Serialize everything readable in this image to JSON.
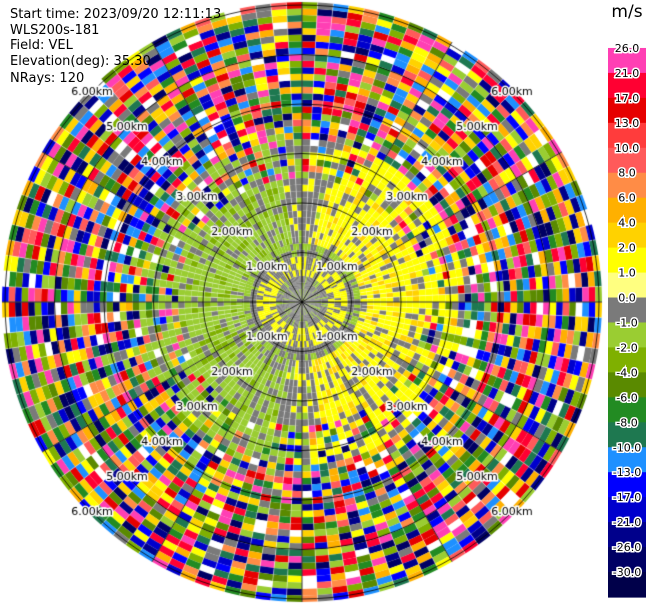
{
  "header": {
    "start_time": "Start time: 2023/09/20 12:11:13",
    "instrument": "WLS200s-181",
    "field": "Field: VEL",
    "elevation": "Elevation(deg): 35.30",
    "nrays": "NRays: 120"
  },
  "chart_data": {
    "type": "heatmap",
    "subtype": "ppi-polar",
    "field": "VEL",
    "units": "m/s",
    "nrays": 120,
    "elevation_deg": 35.3,
    "range_rings_labels": [
      "1.00km",
      "2.00km",
      "3.00km",
      "4.00km",
      "5.00km",
      "6.00km"
    ],
    "colorbar": {
      "label": "m/s",
      "min": -30.0,
      "max": 30.0,
      "ticks": [
        26.0,
        21.0,
        17.0,
        13.0,
        10.0,
        8.0,
        6.0,
        4.0,
        2.0,
        1.0,
        0.0,
        -1.0,
        -2.0,
        -4.0,
        -6.0,
        -8.0,
        -10.0,
        -13.0,
        -17.0,
        -21.0,
        -26.0,
        -30.0
      ],
      "bands": [
        {
          "value": 30.0,
          "color": "#ffffff"
        },
        {
          "value": 26.0,
          "color": "#ff3fb4"
        },
        {
          "value": 21.0,
          "color": "#ff0032"
        },
        {
          "value": 17.0,
          "color": "#e60000"
        },
        {
          "value": 13.0,
          "color": "#ff3c3c"
        },
        {
          "value": 10.0,
          "color": "#ff5a5a"
        },
        {
          "value": 8.0,
          "color": "#ff8c46"
        },
        {
          "value": 6.0,
          "color": "#ffb000"
        },
        {
          "value": 4.0,
          "color": "#ffd200"
        },
        {
          "value": 2.0,
          "color": "#ffff00"
        },
        {
          "value": 1.0,
          "color": "#ffff80"
        },
        {
          "value": 0.0,
          "color": "#7a7a7a"
        },
        {
          "value": -1.0,
          "color": "#9acd32"
        },
        {
          "value": -2.0,
          "color": "#7fb000"
        },
        {
          "value": -4.0,
          "color": "#5a8a00"
        },
        {
          "value": -6.0,
          "color": "#228b22"
        },
        {
          "value": -8.0,
          "color": "#1e7850"
        },
        {
          "value": -10.0,
          "color": "#1e90ff"
        },
        {
          "value": -13.0,
          "color": "#0000ff"
        },
        {
          "value": -17.0,
          "color": "#0000cd"
        },
        {
          "value": -21.0,
          "color": "#00008b"
        },
        {
          "value": -26.0,
          "color": "#000064"
        },
        {
          "value": -30.0,
          "color": "#00004a"
        }
      ]
    }
  }
}
